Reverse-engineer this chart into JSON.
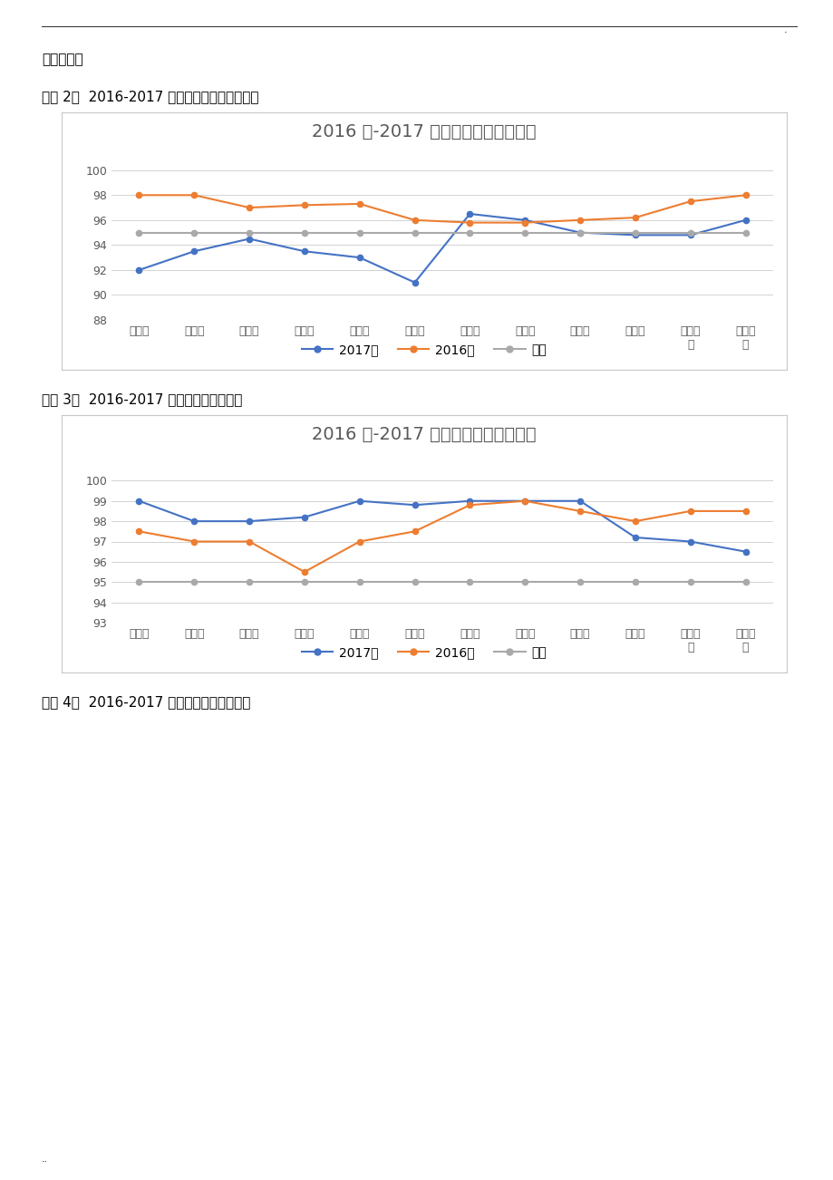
{
  "page_background": "#ffffff",
  "top_dot_text": ".",
  "intro_text": "无可比性。",
  "chart1_label": "图表 2：  2016-2017 年病区管理工作落实情况",
  "chart1_title": "2016 年-2017 年病区管理质量对比图",
  "chart1_ylim": [
    88,
    101
  ],
  "chart1_yticks": [
    88,
    90,
    92,
    94,
    96,
    98,
    100
  ],
  "chart1_2017": [
    92.0,
    93.5,
    94.5,
    93.5,
    93.0,
    91.0,
    96.5,
    96.0,
    95.0,
    94.8,
    94.8,
    96.0
  ],
  "chart1_2016": [
    98.0,
    98.0,
    97.0,
    97.2,
    97.3,
    96.0,
    95.8,
    95.8,
    96.0,
    96.2,
    97.5,
    98.0
  ],
  "chart1_target": [
    95.0,
    95.0,
    95.0,
    95.0,
    95.0,
    95.0,
    95.0,
    95.0,
    95.0,
    95.0,
    95.0,
    95.0
  ],
  "chart2_label": "图表 3：  2016-2017 年基础护理落实情况",
  "chart2_title": "2016 年-2017 年基础护理质量对比图",
  "chart2_ylim": [
    93,
    101
  ],
  "chart2_yticks": [
    93,
    94,
    95,
    96,
    97,
    98,
    99,
    100
  ],
  "chart2_2017": [
    99.0,
    98.0,
    98.0,
    98.2,
    99.0,
    98.8,
    99.0,
    99.0,
    99.0,
    97.2,
    97.0,
    96.5
  ],
  "chart2_2016": [
    97.5,
    97.0,
    97.0,
    95.5,
    97.0,
    97.5,
    98.8,
    99.0,
    98.5,
    98.0,
    98.5,
    98.5
  ],
  "chart2_target": [
    95.0,
    95.0,
    95.0,
    95.0,
    95.0,
    95.0,
    95.0,
    95.0,
    95.0,
    95.0,
    95.0,
    95.0
  ],
  "chart3_label": "图表 4：  2016-2017 年危重症护理落实情况",
  "bottom_dot": "..",
  "months": [
    "一月份",
    "二月份",
    "三月份",
    "四月份",
    "五月份",
    "六月份",
    "七月份",
    "八月份",
    "九月份",
    "十月份",
    "十一月\n份",
    "十二月\n份"
  ],
  "color_2017": "#4472c4",
  "color_2016": "#ed7d31",
  "color_target": "#a9a9a9",
  "legend_2017": "2017年",
  "legend_2016": "2016年",
  "legend_target": "目标",
  "chart_border": "#c8c8c8",
  "grid_color": "#c0c0c0",
  "title_color": "#595959",
  "tick_color": "#595959",
  "label_fontsize": 11,
  "title_fontsize": 14,
  "tick_fontsize": 9,
  "legend_fontsize": 10
}
